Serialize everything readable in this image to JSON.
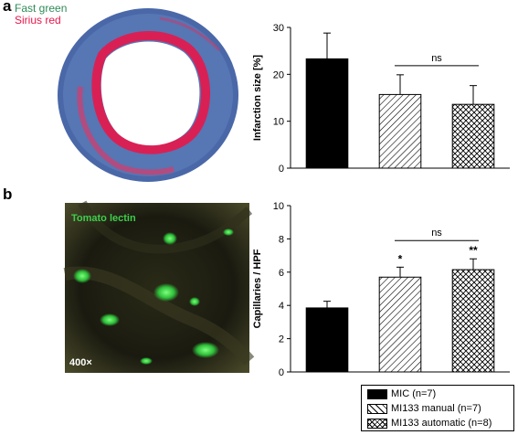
{
  "panel_labels": {
    "a": "a",
    "b": "b"
  },
  "stain_labels": {
    "fast_green": "Fast green",
    "sirius_red": "Sirius red",
    "tomato_lectin": "Tomato lectin",
    "magnification": "400×"
  },
  "colors": {
    "fast_green": "#2e8b57",
    "sirius_red": "#e8174a",
    "tomato_lectin": "#3ecf4a",
    "bar_fill": "#000000",
    "axis": "#000000"
  },
  "legend": {
    "items": [
      {
        "label": "MIC (n=7)",
        "pattern": "solid"
      },
      {
        "label": "MI133 manual (n=7)",
        "pattern": "diagonal"
      },
      {
        "label": "MI133 automatic (n=8)",
        "pattern": "crosshatch"
      }
    ]
  },
  "chart_data": [
    {
      "type": "bar",
      "panel": "a",
      "title": "",
      "xlabel": "",
      "ylabel": "Infarction size [%]",
      "ylim": [
        0,
        30
      ],
      "yticks": [
        0,
        10,
        20,
        30
      ],
      "categories": [
        "MIC (n=7)",
        "MI133 manual (n=7)",
        "MI133 automatic (n=8)"
      ],
      "values": [
        23.3,
        15.7,
        13.6
      ],
      "errors": [
        5.5,
        4.2,
        4.0
      ],
      "patterns": [
        "solid",
        "diagonal",
        "crosshatch"
      ],
      "significance": [
        {
          "from": 1,
          "to": 2,
          "label": "ns"
        }
      ],
      "bar_labels": [
        "",
        "",
        ""
      ]
    },
    {
      "type": "bar",
      "panel": "b",
      "title": "",
      "xlabel": "",
      "ylabel": "Capillaries / HPF",
      "ylim": [
        0,
        10
      ],
      "yticks": [
        0,
        2,
        4,
        6,
        8,
        10
      ],
      "categories": [
        "MIC (n=7)",
        "MI133 manual (n=7)",
        "MI133 automatic (n=8)"
      ],
      "values": [
        3.85,
        5.7,
        6.15
      ],
      "errors": [
        0.4,
        0.6,
        0.65
      ],
      "patterns": [
        "solid",
        "diagonal",
        "crosshatch"
      ],
      "significance": [
        {
          "from": 1,
          "to": 2,
          "label": "ns"
        }
      ],
      "bar_labels": [
        "",
        "*",
        "**"
      ]
    }
  ]
}
